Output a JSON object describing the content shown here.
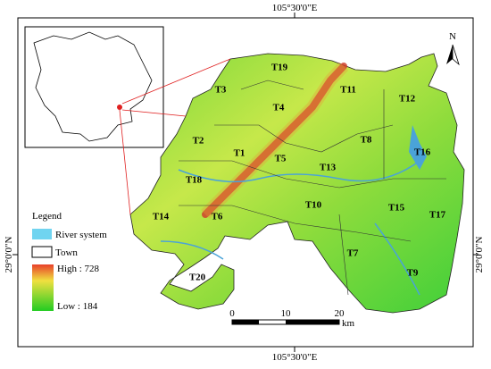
{
  "coordinates": {
    "top": "105°30'0\"E",
    "bottom": "105°30'0\"E",
    "left": "29°0'0\"N",
    "right": "29°0'0\"N"
  },
  "north": "N",
  "towns": [
    "T19",
    "T3",
    "T4",
    "T11",
    "T12",
    "T2",
    "T1",
    "T5",
    "T8",
    "T13",
    "T16",
    "T18",
    "T10",
    "T14",
    "T6",
    "T15",
    "T17",
    "T7",
    "T9",
    "T20"
  ],
  "legend": {
    "title": "Legend",
    "river": "River system",
    "town": "Town",
    "high": "High : 728",
    "low": "Low : 184"
  },
  "scale": {
    "ticks": [
      "0",
      "10",
      "20"
    ],
    "unit": "km"
  }
}
